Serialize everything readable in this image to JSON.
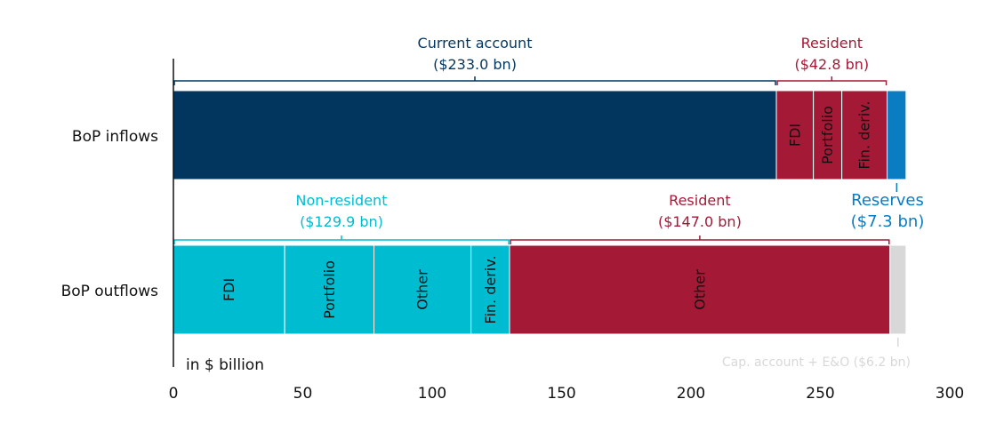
{
  "chart_data": {
    "type": "bar",
    "orientation": "horizontal",
    "stacked": true,
    "unit_note": "in $ billion",
    "xlim": [
      0,
      300
    ],
    "x_ticks": [
      "0",
      "50",
      "100",
      "150",
      "200",
      "250",
      "300"
    ],
    "grid": false,
    "colors": {
      "navy": "#03365F",
      "crimson": "#A31936",
      "cyan": "#00BCD0",
      "blue": "#0A7CC2",
      "grey": "#D8D8D8"
    },
    "rows": [
      {
        "label": "BoP inflows",
        "segments": [
          {
            "label": "",
            "value": 233.0,
            "color": "navy"
          },
          {
            "label": "FDI",
            "value": 14.3,
            "color": "crimson"
          },
          {
            "label": "Portfolio",
            "value": 11.0,
            "color": "crimson"
          },
          {
            "label": "Fin. deriv.",
            "value": 17.5,
            "color": "crimson"
          },
          {
            "label": "",
            "value": 7.3,
            "color": "blue"
          }
        ],
        "brackets": [
          {
            "title": "Current account",
            "amount": "($233.0 bn)",
            "start": 0,
            "end": 233.0,
            "color": "navy"
          },
          {
            "title": "Resident",
            "amount": "($42.8 bn)",
            "start": 233.0,
            "end": 275.8,
            "color": "crimson"
          }
        ],
        "callout": {
          "title": "Reserves",
          "amount": "($7.3 bn)",
          "at": 279.5,
          "color": "blue"
        }
      },
      {
        "label": "BoP outflows",
        "segments": [
          {
            "label": "FDI",
            "value": 43.0,
            "color": "cyan"
          },
          {
            "label": "Portfolio",
            "value": 34.5,
            "color": "cyan"
          },
          {
            "label": "Other",
            "value": 37.5,
            "color": "cyan"
          },
          {
            "label": "Fin. deriv.",
            "value": 14.9,
            "color": "cyan"
          },
          {
            "label": "Other",
            "value": 147.0,
            "color": "crimson"
          },
          {
            "label": "",
            "value": 6.2,
            "color": "grey"
          }
        ],
        "brackets": [
          {
            "title": "Non-resident",
            "amount": "($129.9 bn)",
            "start": 0,
            "end": 129.9,
            "color": "cyan"
          },
          {
            "title": "Resident",
            "amount": "($147.0 bn)",
            "start": 129.9,
            "end": 276.9,
            "color": "crimson"
          }
        ],
        "callout": {
          "title": "Cap. account + E&O ($6.2 bn)",
          "amount": "",
          "at": 280.0,
          "color": "grey"
        }
      }
    ]
  }
}
